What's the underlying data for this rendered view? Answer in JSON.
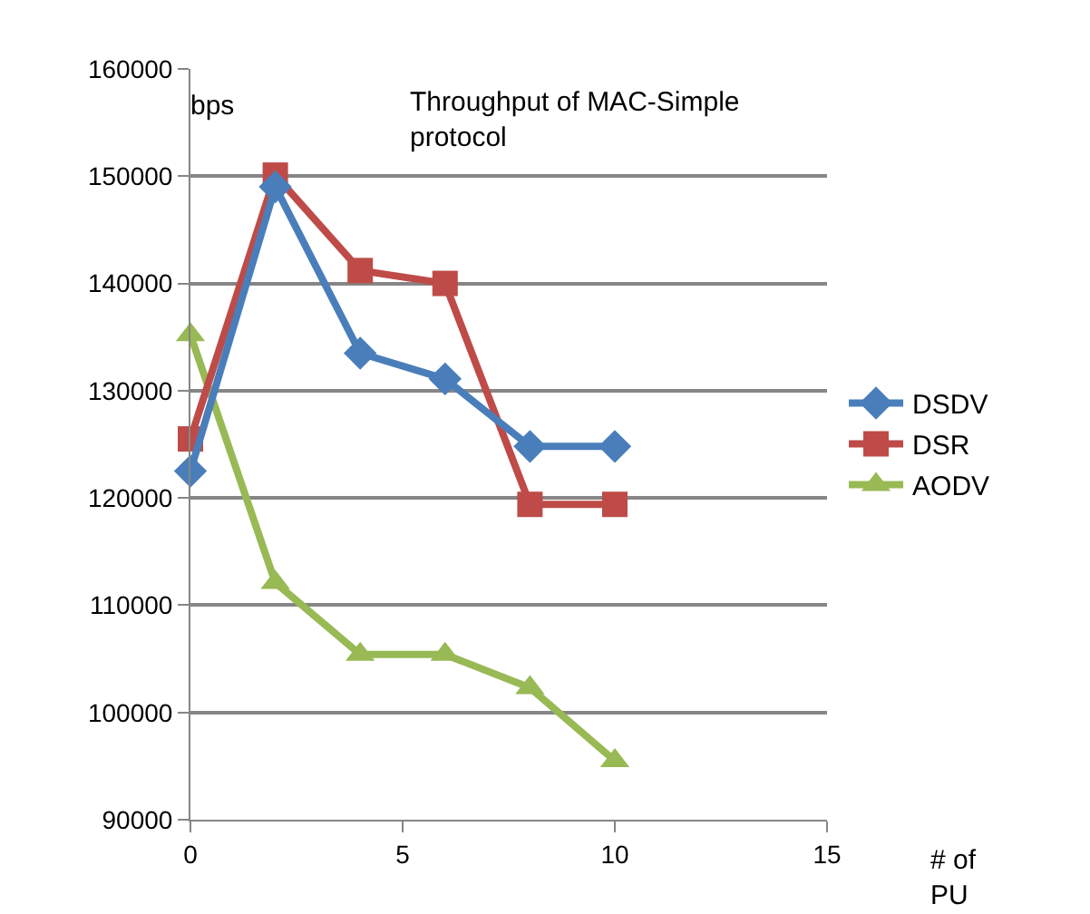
{
  "chart_data": {
    "type": "line",
    "title": "Throughput of MAC-Simple protocol",
    "ylabel": "bps",
    "xlabel": "# of PU",
    "x": [
      0,
      2,
      4,
      6,
      8,
      10
    ],
    "series": [
      {
        "name": "DSDV",
        "color": "#4a7ebb",
        "values": [
          122500,
          149000,
          133500,
          131100,
          124800,
          124800
        ],
        "marker": "diamond"
      },
      {
        "name": "DSR",
        "color": "#be4b48",
        "values": [
          125500,
          150100,
          141200,
          140000,
          119400,
          119400
        ],
        "marker": "square"
      },
      {
        "name": "AODV",
        "color": "#98b954",
        "values": [
          135200,
          112100,
          105400,
          105400,
          102300,
          95500
        ],
        "marker": "triangle"
      }
    ],
    "xlim": [
      0,
      15
    ],
    "xticks": [
      0,
      5,
      10,
      15
    ],
    "ylim": [
      90000,
      160000
    ],
    "yticks": [
      90000,
      100000,
      110000,
      120000,
      130000,
      140000,
      150000,
      160000
    ],
    "grid": "y",
    "legend": "right",
    "line_style": "solid"
  }
}
